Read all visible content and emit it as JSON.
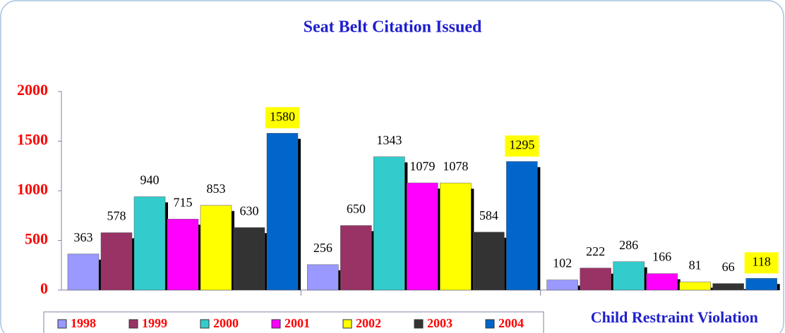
{
  "chart_data": {
    "type": "bar",
    "title": "Seat Belt Citation Issued",
    "categories": [
      null,
      null,
      "Child Restraint Violation"
    ],
    "series": [
      {
        "name": "1998",
        "color": "#9999ff",
        "values": [
          363,
          256,
          102
        ]
      },
      {
        "name": "1999",
        "color": "#993366",
        "values": [
          578,
          650,
          222
        ]
      },
      {
        "name": "2000",
        "color": "#33cccc",
        "values": [
          940,
          1343,
          286
        ]
      },
      {
        "name": "2001",
        "color": "#ff00ff",
        "values": [
          715,
          1079,
          166
        ]
      },
      {
        "name": "2002",
        "color": "#ffff00",
        "values": [
          853,
          1078,
          81
        ]
      },
      {
        "name": "2003",
        "color": "#333333",
        "values": [
          630,
          584,
          66
        ]
      },
      {
        "name": "2004",
        "color": "#0066cc",
        "values": [
          1580,
          1295,
          118
        ],
        "label_background": "#ffff00"
      }
    ],
    "ylim": [
      0,
      2000
    ],
    "yticks": [
      0,
      500,
      1000,
      1500,
      2000
    ],
    "legend": "bottom"
  }
}
